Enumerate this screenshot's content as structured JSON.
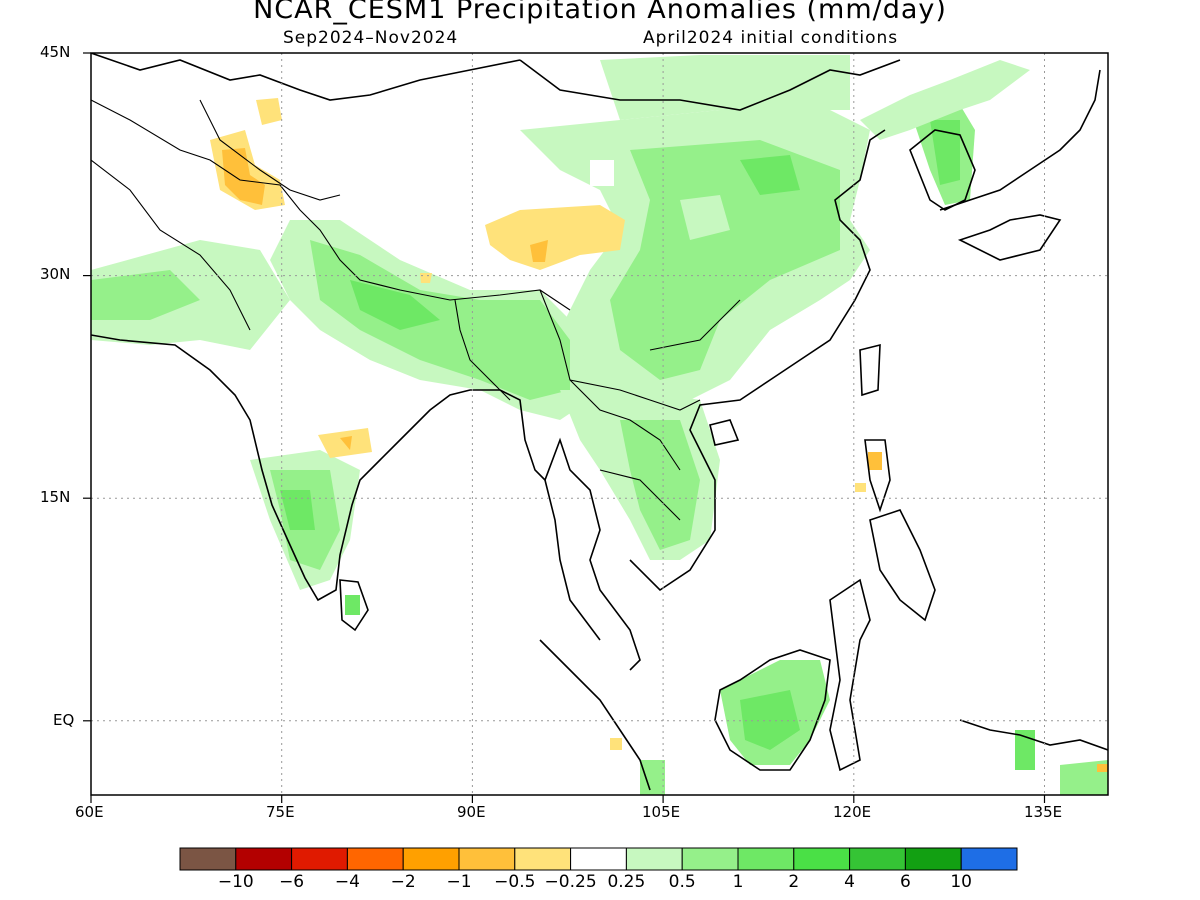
{
  "header": {
    "title": "NCAR_CESM1 Precipitation Anomalies (mm/day)",
    "period": "Sep2024–Nov2024",
    "init": "April2024 initial conditions"
  },
  "map": {
    "lon_range": [
      60,
      140
    ],
    "lat_range": [
      -5,
      45
    ],
    "lat_ticks": [
      {
        "value": 45,
        "label": "45N"
      },
      {
        "value": 30,
        "label": "30N"
      },
      {
        "value": 15,
        "label": "15N"
      },
      {
        "value": 0,
        "label": "EQ"
      }
    ],
    "lon_ticks": [
      {
        "value": 60,
        "label": "60E"
      },
      {
        "value": 75,
        "label": "75E"
      },
      {
        "value": 90,
        "label": "90E"
      },
      {
        "value": 105,
        "label": "105E"
      },
      {
        "value": 120,
        "label": "120E"
      },
      {
        "value": 135,
        "label": "135E"
      }
    ],
    "gridlines": true
  },
  "colorbar": {
    "colors": [
      "#7b5544",
      "#b30000",
      "#e01a00",
      "#ff6600",
      "#ffa000",
      "#ffc03a",
      "#ffe27a",
      "#ffffff",
      "#c7f8c0",
      "#95f08a",
      "#6ee865",
      "#4ae046",
      "#35c435",
      "#12a012",
      "#1e6ee6"
    ],
    "labels": [
      "−10",
      "−6",
      "−4",
      "−2",
      "−1",
      "−0.5",
      "−0.25",
      "0.25",
      "0.5",
      "1",
      "2",
      "4",
      "6",
      "10"
    ]
  }
}
